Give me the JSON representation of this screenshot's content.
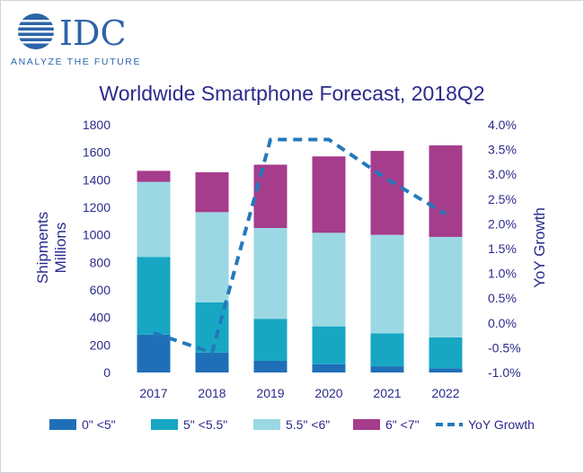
{
  "brand": {
    "logo_text": "IDC",
    "tagline": "ANALYZE THE FUTURE",
    "color": "#2c64a8"
  },
  "chart_data": {
    "type": "bar",
    "stacked": true,
    "title": "Worldwide Smartphone Forecast, 2018Q2",
    "ylabel_left": [
      "Shipments",
      "Millions"
    ],
    "ylabel_right": "YoY Growth",
    "categories": [
      "2017",
      "2018",
      "2019",
      "2020",
      "2021",
      "2022"
    ],
    "ylim_left": [
      0,
      1800
    ],
    "yticks_left": [
      "0",
      "200",
      "400",
      "600",
      "800",
      "1000",
      "1200",
      "1400",
      "1600",
      "1800"
    ],
    "ylim_right": [
      -1.0,
      4.0
    ],
    "yticks_right": [
      "-1.0%",
      "-0.5%",
      "0.0%",
      "0.5%",
      "1.0%",
      "1.5%",
      "2.0%",
      "2.5%",
      "3.0%",
      "3.5%",
      "4.0%"
    ],
    "series": [
      {
        "name": "0\" <5\"",
        "color": "#1f6fb8",
        "values": [
          275,
          145,
          85,
          60,
          45,
          30
        ]
      },
      {
        "name": "5\" <5.5\"",
        "color": "#17a7c3",
        "values": [
          565,
          365,
          305,
          275,
          240,
          225
        ]
      },
      {
        "name": "5.5\" <6\"",
        "color": "#9bd8e4",
        "values": [
          545,
          655,
          660,
          680,
          715,
          730
        ]
      },
      {
        "name": "6\" <7\"",
        "color": "#a53c8c",
        "values": [
          80,
          290,
          460,
          555,
          610,
          665
        ]
      }
    ],
    "line": {
      "name": "YoY Growth",
      "color": "#2379bc",
      "axis": "right",
      "values": [
        -0.2,
        -0.6,
        3.7,
        3.7,
        2.9,
        2.2
      ]
    },
    "legend_position": "bottom"
  }
}
